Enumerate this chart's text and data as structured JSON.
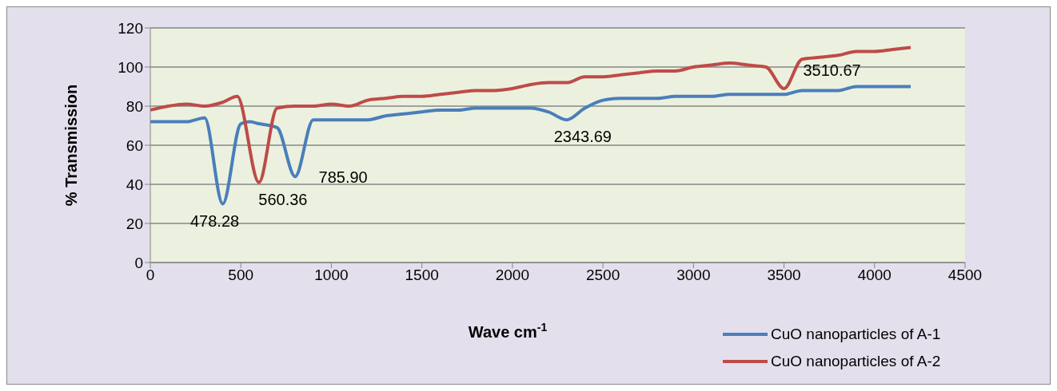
{
  "chart_data": {
    "type": "line",
    "xlabel": "Wave cm$^{-1}$",
    "ylabel": "% Transmission",
    "xlim": [
      0,
      4500
    ],
    "xticks": [
      0,
      500,
      1000,
      1500,
      2000,
      2500,
      3000,
      3500,
      4000,
      4500
    ],
    "ylim": [
      0,
      120
    ],
    "yticks": [
      0,
      20,
      40,
      60,
      80,
      100,
      120
    ],
    "grid": "y",
    "legend": "bottom right",
    "marker": "none",
    "line_style": "solid",
    "series": [
      {
        "name": "CuO nanoparticles of A-1",
        "color": "#4a7ebb",
        "x": [
          0,
          100,
          200,
          300,
          400,
          500,
          550,
          600,
          700,
          800,
          900,
          1000,
          1100,
          1200,
          1300,
          1400,
          1500,
          1600,
          1700,
          1800,
          1900,
          2000,
          2100,
          2200,
          2300,
          2400,
          2500,
          2600,
          2700,
          2800,
          2900,
          3000,
          3100,
          3200,
          3300,
          3400,
          3500,
          3600,
          3700,
          3800,
          3900,
          4000,
          4100,
          4200
        ],
        "values": [
          72,
          72,
          72,
          74,
          30,
          71,
          72,
          71,
          69,
          44,
          73,
          73,
          73,
          73,
          75,
          76,
          77,
          78,
          78,
          79,
          79,
          79,
          79,
          77,
          73,
          79,
          83,
          84,
          84,
          84,
          85,
          85,
          85,
          86,
          86,
          86,
          86,
          88,
          88,
          88,
          90,
          90,
          90,
          90
        ]
      },
      {
        "name": "CuO nanoparticles of A-2",
        "color": "#be4b48",
        "x": [
          0,
          100,
          200,
          300,
          400,
          480,
          600,
          700,
          800,
          900,
          1000,
          1100,
          1200,
          1300,
          1400,
          1500,
          1600,
          1700,
          1800,
          1900,
          2000,
          2100,
          2200,
          2300,
          2400,
          2500,
          2600,
          2700,
          2800,
          2900,
          3000,
          3100,
          3200,
          3300,
          3400,
          3500,
          3600,
          3700,
          3800,
          3900,
          4000,
          4100,
          4200
        ],
        "values": [
          78,
          80,
          81,
          80,
          82,
          85,
          41,
          79,
          80,
          80,
          81,
          80,
          83,
          84,
          85,
          85,
          86,
          87,
          88,
          88,
          89,
          91,
          92,
          92,
          95,
          95,
          96,
          97,
          98,
          98,
          100,
          101,
          102,
          101,
          100,
          89,
          104,
          105,
          106,
          108,
          108,
          109,
          110
        ]
      }
    ],
    "annotations": [
      {
        "text": "478.28",
        "x": 400,
        "y": 30
      },
      {
        "text": "560.36",
        "x": 600,
        "y": 41
      },
      {
        "text": "785.90",
        "x": 800,
        "y": 44
      },
      {
        "text": "2343.69",
        "x": 2300,
        "y": 73
      },
      {
        "text": "3510.67",
        "x": 3500,
        "y": 89
      }
    ]
  }
}
